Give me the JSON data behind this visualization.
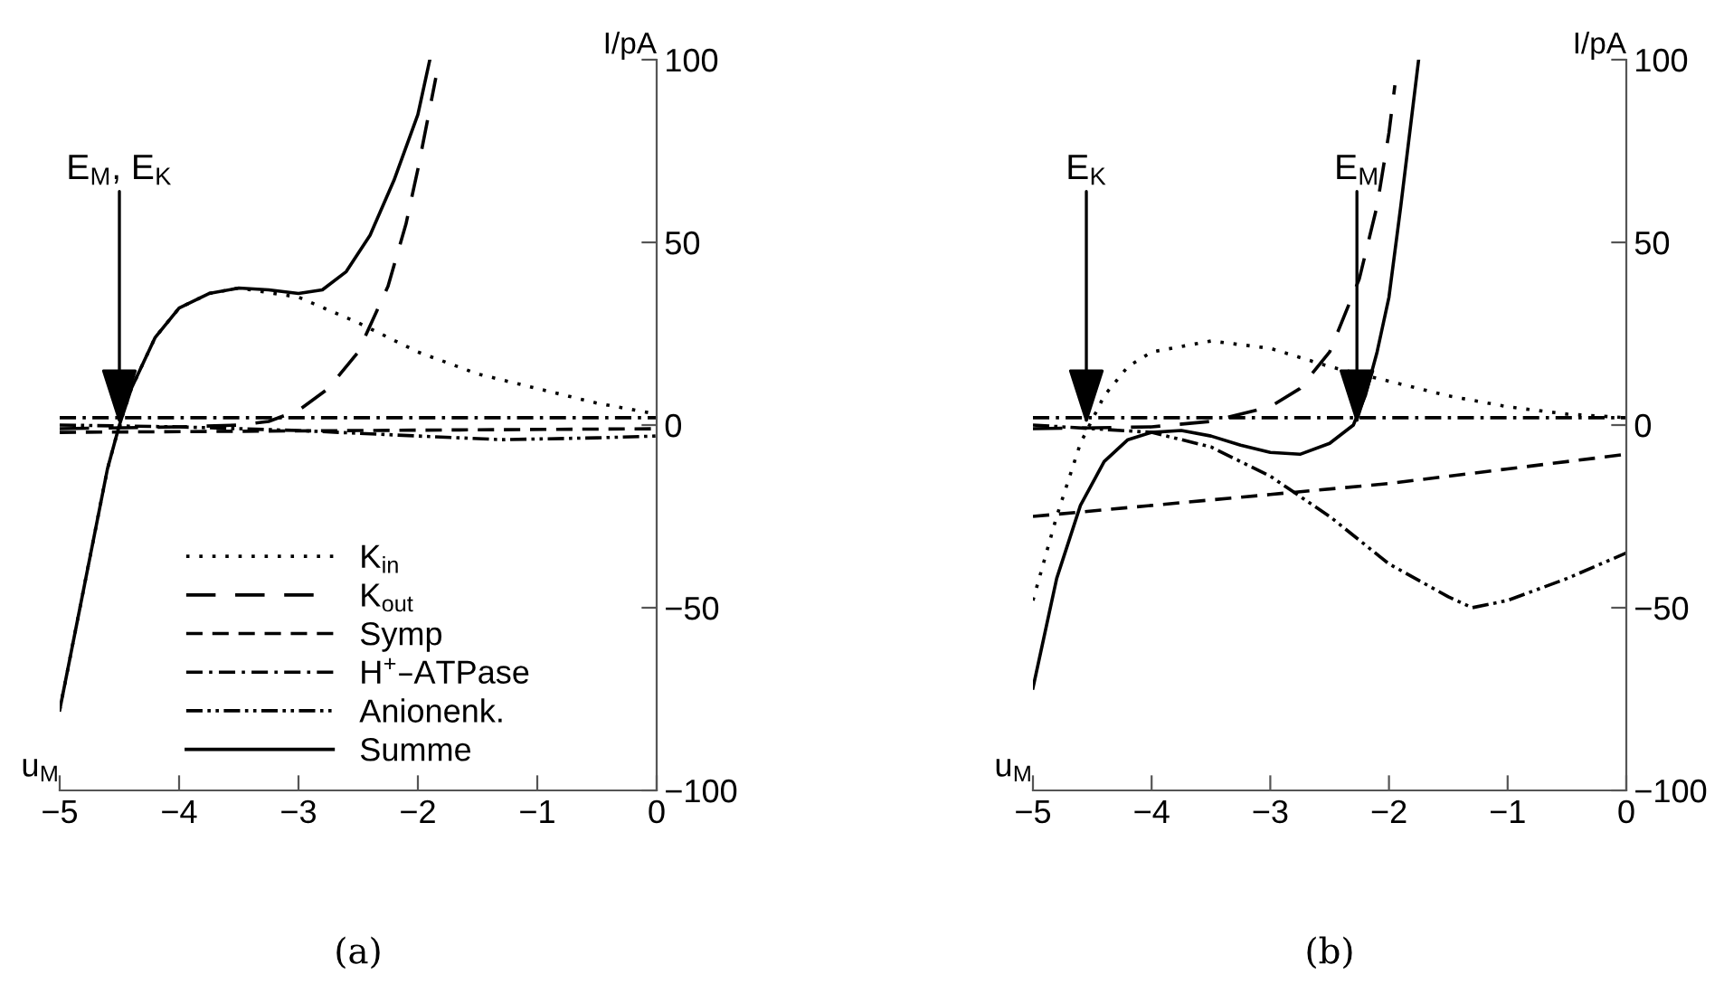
{
  "chart_data": [
    {
      "type": "line",
      "title": "(a)",
      "xlabel": "u$_{M}$",
      "ylabel": "I/pA",
      "xlim": [
        -5,
        0
      ],
      "ylim": [
        -100,
        100
      ],
      "xticks": [
        -5,
        -4,
        -3,
        -2,
        -1,
        0
      ],
      "yticks": [
        -100,
        -50,
        0,
        50,
        100
      ],
      "grid": false,
      "legend": "bottom",
      "annotations": [
        {
          "text": "E$_{M}$, E$_{K}$",
          "x": -4.5,
          "y": 0
        }
      ],
      "series": [
        {
          "name": "K$_{in}$",
          "color": "#000000",
          "line_style": "dotted",
          "x": [
            -5,
            -4.8,
            -4.6,
            -4.5,
            -4.4,
            -4.2,
            -4,
            -3.75,
            -3.5,
            -3,
            -2.5,
            -2,
            -1.5,
            -1,
            -0.5,
            0
          ],
          "values": [
            -78,
            -45,
            -12,
            0,
            10,
            24,
            32,
            36,
            37.5,
            35,
            28,
            20,
            14,
            10,
            6,
            3
          ]
        },
        {
          "name": "K$_{out}$",
          "color": "#000000",
          "line_style": "longdash",
          "x": [
            -5,
            -4,
            -3.5,
            -3.25,
            -3,
            -2.75,
            -2.5,
            -2.25,
            -2.1,
            -2,
            -1.85
          ],
          "values": [
            -1,
            -0.5,
            0,
            1,
            4,
            10,
            20,
            38,
            55,
            70,
            95
          ]
        },
        {
          "name": "Symp",
          "color": "#000000",
          "line_style": "dashed",
          "x": [
            -5,
            -2.5,
            0
          ],
          "values": [
            -2,
            -1.5,
            -1
          ]
        },
        {
          "name": "H$^{+}$–ATPase",
          "color": "#000000",
          "line_style": "dashdot",
          "x": [
            -5,
            0
          ],
          "values": [
            2,
            2
          ]
        },
        {
          "name": "Anionenk.",
          "color": "#000000",
          "line_style": "dashdotdot",
          "x": [
            -5,
            -4,
            -3,
            -2,
            -1.3,
            -0.5,
            0
          ],
          "values": [
            0,
            -0.5,
            -1.5,
            -3,
            -4,
            -3.5,
            -3
          ]
        },
        {
          "name": "Summe",
          "color": "#000000",
          "line_style": "solid",
          "x": [
            -5,
            -4.8,
            -4.6,
            -4.5,
            -4.4,
            -4.2,
            -4,
            -3.75,
            -3.5,
            -3.25,
            -3,
            -2.8,
            -2.6,
            -2.4,
            -2.2,
            -2,
            -1.9
          ],
          "values": [
            -78,
            -45,
            -12,
            0,
            10,
            24,
            32,
            36,
            37.5,
            37,
            36,
            37,
            42,
            52,
            67,
            85,
            100
          ]
        }
      ]
    },
    {
      "type": "line",
      "title": "(b)",
      "xlabel": "u$_{M}$",
      "ylabel": "I/pA",
      "xlim": [
        -5,
        0
      ],
      "ylim": [
        -100,
        100
      ],
      "xticks": [
        -5,
        -4,
        -3,
        -2,
        -1,
        0
      ],
      "yticks": [
        -100,
        -50,
        0,
        50,
        100
      ],
      "grid": false,
      "annotations": [
        {
          "text": "E$_{K}$",
          "x": -4.55,
          "y": 0
        },
        {
          "text": "E$_{M}$",
          "x": -2.27,
          "y": 0
        }
      ],
      "series": [
        {
          "color": "#000000",
          "line_style": "dotted",
          "x": [
            -5,
            -4.8,
            -4.6,
            -4.4,
            -4.2,
            -4,
            -3.5,
            -3,
            -2.5,
            -2,
            -1.5,
            -1,
            -0.5,
            0
          ],
          "values": [
            -48,
            -25,
            -5,
            8,
            16,
            20,
            23,
            21,
            16,
            12,
            8,
            5,
            3,
            2
          ]
        },
        {
          "color": "#000000",
          "line_style": "longdash",
          "x": [
            -5,
            -4,
            -3.5,
            -3,
            -2.75,
            -2.5,
            -2.25,
            -2.1,
            -2,
            -1.95
          ],
          "values": [
            -1,
            -0.5,
            1,
            5,
            10,
            20,
            40,
            60,
            80,
            93
          ]
        },
        {
          "color": "#000000",
          "line_style": "dashed",
          "x": [
            -5,
            -4,
            -3,
            -2,
            -1,
            0
          ],
          "values": [
            -25,
            -22,
            -19,
            -16,
            -12,
            -8
          ]
        },
        {
          "color": "#000000",
          "line_style": "dashdot",
          "x": [
            -5,
            0
          ],
          "values": [
            2,
            2
          ]
        },
        {
          "color": "#000000",
          "line_style": "dashdotdot",
          "x": [
            -5,
            -4,
            -3.5,
            -3,
            -2.5,
            -2,
            -1.5,
            -1.3,
            -1,
            -0.5,
            0
          ],
          "values": [
            0,
            -2,
            -6,
            -14,
            -25,
            -38,
            -47,
            -50,
            -48,
            -42,
            -35
          ]
        },
        {
          "color": "#000000",
          "line_style": "solid",
          "x": [
            -5,
            -4.8,
            -4.6,
            -4.4,
            -4.2,
            -4,
            -3.75,
            -3.5,
            -3.25,
            -3,
            -2.75,
            -2.5,
            -2.3,
            -2.2,
            -2.1,
            -2,
            -1.9,
            -1.75
          ],
          "values": [
            -72,
            -42,
            -22,
            -10,
            -4,
            -2,
            -1.5,
            -3,
            -5.5,
            -7.5,
            -8,
            -5,
            0,
            8,
            20,
            35,
            60,
            100
          ]
        }
      ]
    }
  ]
}
